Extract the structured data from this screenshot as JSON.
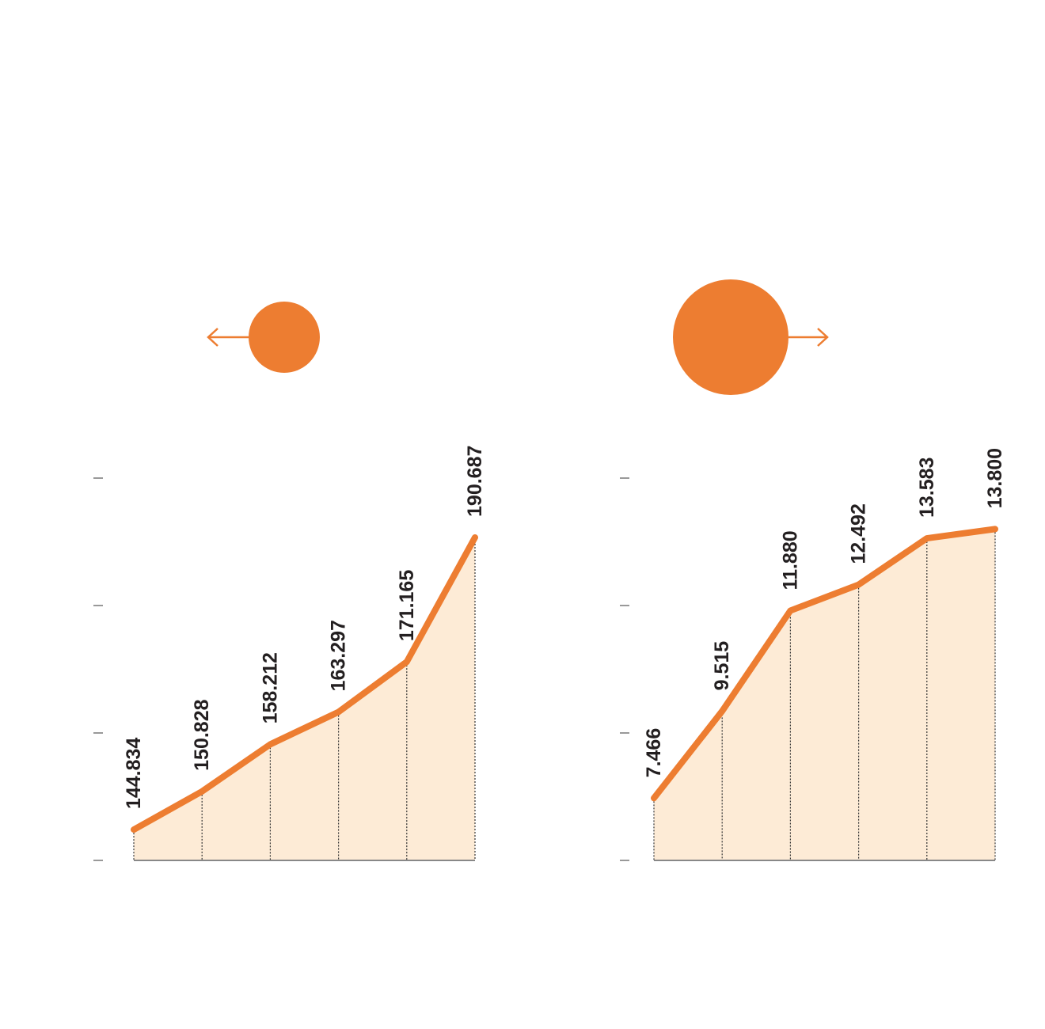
{
  "chart_data": [
    {
      "type": "area",
      "values": [
        144.834,
        150.828,
        158.212,
        163.297,
        171.165,
        190.687
      ],
      "color": "#ed7d31",
      "fill": "#fdebd6",
      "ylim": [
        140,
        200
      ],
      "yticks": [
        140,
        160,
        180,
        200
      ]
    },
    {
      "type": "area",
      "values": [
        7.466,
        9.515,
        11.88,
        12.492,
        13.583,
        13.8
      ],
      "value_labels": [
        "7.466",
        "9.515",
        "11.880",
        "12.492",
        "13.583",
        "13.800"
      ],
      "color": "#ed7d31",
      "fill": "#fdebd6",
      "ylim": [
        6,
        15
      ],
      "yticks": [
        6,
        9,
        12,
        15
      ]
    }
  ]
}
